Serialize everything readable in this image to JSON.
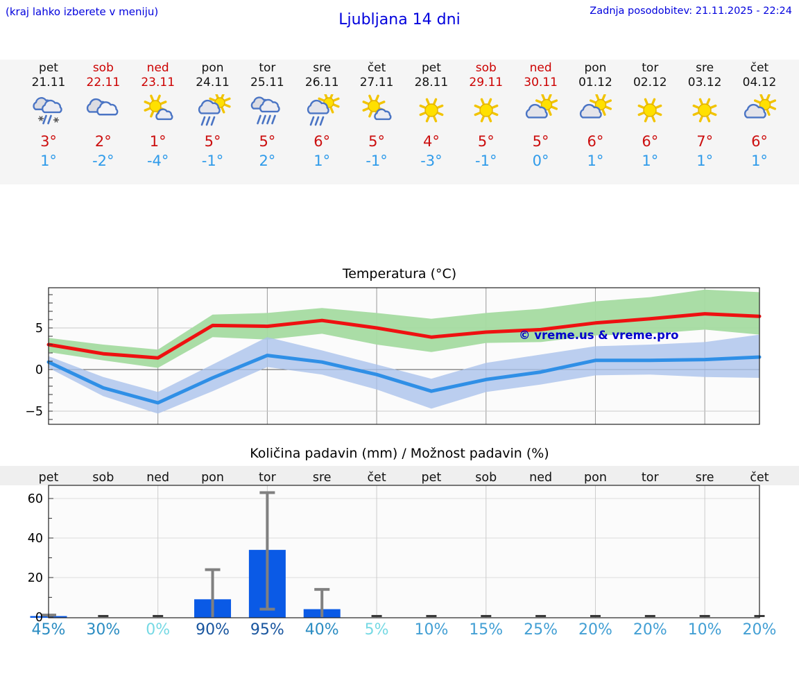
{
  "header": {
    "menu_hint": "(kraj lahko izberete v meniju)",
    "title": "Ljubljana 14 dni",
    "last_update": "Zadnja posodobitev: 21.11.2025 - 22:24"
  },
  "colors": {
    "link_blue": "#0000dd",
    "high_temp_red": "#cc0f0f",
    "low_temp_blue": "#2f9bea",
    "weekend_red": "#cc0000",
    "weekday_black": "#111111",
    "strip_bg": "#f5f5f5",
    "max_line": "#ee1111",
    "min_line": "#2f8fe6",
    "max_band": "#a5dba1",
    "min_band": "#a9c2ec",
    "bar_blue": "#0a5ae6",
    "error_gray": "#808080"
  },
  "forecast": {
    "days": [
      {
        "name": "pet",
        "date": "21.11",
        "weekend": false,
        "icon": "sleet",
        "high": "3°",
        "low": "1°"
      },
      {
        "name": "sob",
        "date": "22.11",
        "weekend": true,
        "icon": "cloudy",
        "high": "2°",
        "low": "-2°"
      },
      {
        "name": "ned",
        "date": "23.11",
        "weekend": true,
        "icon": "sun-small-cloud",
        "high": "1°",
        "low": "-4°"
      },
      {
        "name": "pon",
        "date": "24.11",
        "weekend": false,
        "icon": "rain-sun",
        "high": "5°",
        "low": "-1°"
      },
      {
        "name": "tor",
        "date": "25.11",
        "weekend": false,
        "icon": "rain",
        "high": "5°",
        "low": "2°"
      },
      {
        "name": "sre",
        "date": "26.11",
        "weekend": false,
        "icon": "rain-sun",
        "high": "6°",
        "low": "1°"
      },
      {
        "name": "čet",
        "date": "27.11",
        "weekend": false,
        "icon": "sun-small-cloud",
        "high": "5°",
        "low": "-1°"
      },
      {
        "name": "pet",
        "date": "28.11",
        "weekend": false,
        "icon": "sunny",
        "high": "4°",
        "low": "-3°"
      },
      {
        "name": "sob",
        "date": "29.11",
        "weekend": true,
        "icon": "sunny",
        "high": "5°",
        "low": "-1°"
      },
      {
        "name": "ned",
        "date": "30.11",
        "weekend": true,
        "icon": "sun-cloud",
        "high": "5°",
        "low": "0°"
      },
      {
        "name": "pon",
        "date": "01.12",
        "weekend": false,
        "icon": "sun-cloud",
        "high": "6°",
        "low": "1°"
      },
      {
        "name": "tor",
        "date": "02.12",
        "weekend": false,
        "icon": "sunny",
        "high": "6°",
        "low": "1°"
      },
      {
        "name": "sre",
        "date": "03.12",
        "weekend": false,
        "icon": "sunny",
        "high": "7°",
        "low": "1°"
      },
      {
        "name": "čet",
        "date": "04.12",
        "weekend": false,
        "icon": "sun-cloud",
        "high": "6°",
        "low": "1°"
      }
    ]
  },
  "chart_data": [
    {
      "type": "line",
      "title": "Temperatura (°C)",
      "x_labels": [
        "pet",
        "sob",
        "ned",
        "pon",
        "tor",
        "sre",
        "čet",
        "pet",
        "sob",
        "ned",
        "pon",
        "tor",
        "sre",
        "čet"
      ],
      "yticks": [
        5,
        0,
        -5
      ],
      "ylim": [
        -6.6,
        9.8
      ],
      "grid": true,
      "watermark": "© vreme.us & vreme.pro",
      "series": [
        {
          "name": "max temp",
          "color": "#ee1111",
          "values": [
            3,
            1.9,
            1.4,
            5.3,
            5.2,
            5.9,
            5,
            3.9,
            4.5,
            4.8,
            5.6,
            6.1,
            6.7,
            6.4
          ]
        },
        {
          "name": "min temp",
          "color": "#2f8fe6",
          "values": [
            0.9,
            -2.2,
            -4,
            -1,
            1.7,
            0.9,
            -0.6,
            -2.6,
            -1.2,
            -0.3,
            1.1,
            1.1,
            1.2,
            1.5
          ]
        }
      ],
      "bands": [
        {
          "name": "max range",
          "color": "#a5dba1",
          "upper": [
            3.8,
            3.0,
            2.4,
            6.6,
            6.8,
            7.4,
            6.8,
            6.1,
            6.8,
            7.3,
            8.2,
            8.7,
            9.6,
            9.3
          ],
          "lower": [
            2.1,
            1.1,
            0.2,
            3.9,
            3.6,
            4.3,
            3.0,
            2.1,
            3.2,
            3.3,
            4.1,
            4.3,
            4.8,
            4.2
          ]
        },
        {
          "name": "min range",
          "color": "#a9c2ec",
          "upper": [
            1.6,
            -0.9,
            -2.7,
            0.6,
            3.9,
            2.3,
            0.6,
            -1.1,
            0.8,
            1.8,
            2.8,
            3.0,
            3.3,
            4.2
          ],
          "lower": [
            0.2,
            -3.2,
            -5.3,
            -2.6,
            0.3,
            -0.6,
            -2.4,
            -4.7,
            -2.7,
            -1.8,
            -0.7,
            -0.6,
            -0.9,
            -1.0
          ]
        }
      ]
    },
    {
      "type": "bar",
      "title": "Količina padavin (mm) / Možnost padavin (%)",
      "categories": [
        "pet",
        "sob",
        "ned",
        "pon",
        "tor",
        "sre",
        "čet",
        "pet",
        "sob",
        "ned",
        "pon",
        "tor",
        "sre",
        "čet"
      ],
      "values": [
        0.5,
        0,
        0,
        9,
        34,
        4,
        0,
        0,
        0,
        0,
        0,
        0,
        0,
        0
      ],
      "error_low": [
        0,
        null,
        null,
        0,
        4,
        0,
        null,
        null,
        null,
        null,
        null,
        null,
        null,
        null
      ],
      "error_high": [
        1,
        null,
        null,
        24,
        63,
        14,
        null,
        null,
        null,
        null,
        null,
        null,
        null,
        null
      ],
      "probabilities": [
        "45%",
        "30%",
        "0%",
        "90%",
        "95%",
        "40%",
        "5%",
        "10%",
        "15%",
        "25%",
        "20%",
        "20%",
        "10%",
        "20%"
      ],
      "prob_colors": [
        "#2a8cc2",
        "#2a8cc2",
        "#76d9e4",
        "#17549e",
        "#17549e",
        "#2a8cc2",
        "#76d9e4",
        "#429fd4",
        "#429fd4",
        "#429fd4",
        "#429fd4",
        "#429fd4",
        "#429fd4",
        "#429fd4"
      ],
      "yticks": [
        0,
        20,
        40,
        60
      ],
      "ylim": [
        0,
        66.5
      ],
      "grid": true
    }
  ]
}
